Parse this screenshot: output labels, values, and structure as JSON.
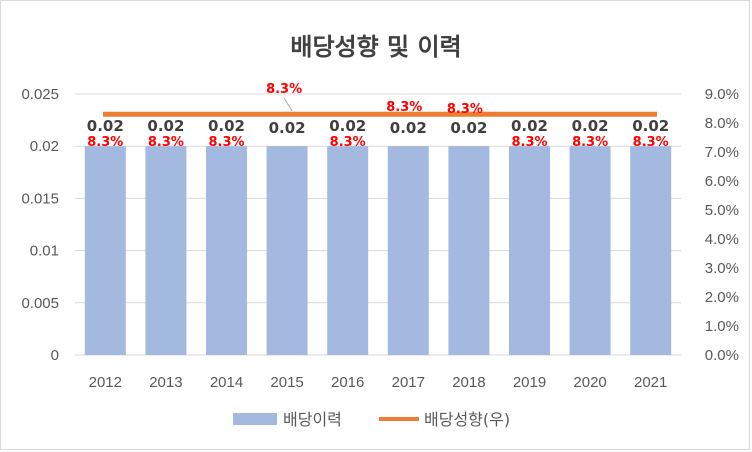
{
  "chart_data": {
    "type": "bar",
    "title": "배당성향 및 이력",
    "categories": [
      "2012",
      "2013",
      "2014",
      "2015",
      "2016",
      "2017",
      "2018",
      "2019",
      "2020",
      "2021"
    ],
    "series": [
      {
        "name": "배당이력",
        "type": "bar",
        "axis": "left",
        "values": [
          0.02,
          0.02,
          0.02,
          0.02,
          0.02,
          0.02,
          0.02,
          0.02,
          0.02,
          0.02
        ],
        "labels": [
          "0.02",
          "0.02",
          "0.02",
          "0.02",
          "0.02",
          "0.02",
          "0.02",
          "0.02",
          "0.02",
          "0.02"
        ],
        "color": "#a3b9e0"
      },
      {
        "name": "배당성향(우)",
        "type": "line",
        "axis": "right",
        "values": [
          8.3,
          8.3,
          8.3,
          8.3,
          8.3,
          8.3,
          8.3,
          8.3,
          8.3,
          8.3
        ],
        "labels": [
          "8.3%",
          "8.3%",
          "8.3%",
          "8.3%",
          "8.3%",
          "8.3%",
          "8.3%",
          "8.3%",
          "8.3%",
          "8.3%"
        ],
        "color": "#ed7d31",
        "label_color": "#ff0000"
      }
    ],
    "y_left": {
      "ylim": [
        0,
        0.025
      ],
      "ticks": [
        0,
        0.005,
        0.01,
        0.015,
        0.02,
        0.025
      ],
      "tick_labels": [
        "0",
        "0.005",
        "0.01",
        "0.015",
        "0.02",
        "0.025"
      ]
    },
    "y_right": {
      "ylim": [
        0,
        9
      ],
      "ticks": [
        0,
        1,
        2,
        3,
        4,
        5,
        6,
        7,
        8,
        9
      ],
      "tick_labels": [
        "0.0%",
        "1.0%",
        "2.0%",
        "3.0%",
        "4.0%",
        "5.0%",
        "6.0%",
        "7.0%",
        "8.0%",
        "9.0%"
      ]
    },
    "grid": true,
    "legend": "bottom"
  }
}
